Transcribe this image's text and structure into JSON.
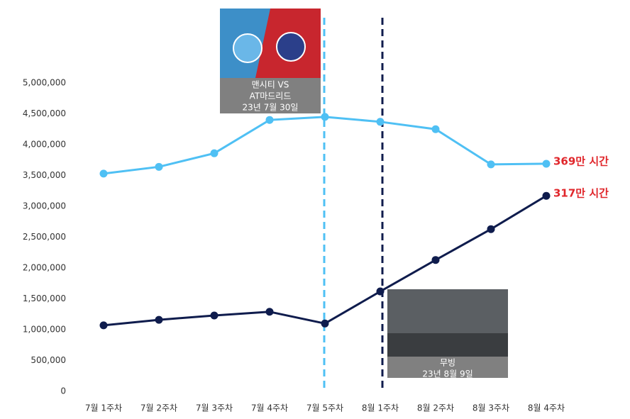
{
  "chart_data": {
    "type": "line",
    "categories": [
      "7월 1주차",
      "7월 2주차",
      "7월 3주차",
      "7월 4주차",
      "7월 5주차",
      "8월 1주차",
      "8월 2주차",
      "8월 3주차",
      "8월 4주차"
    ],
    "series": [
      {
        "color": "#4fc0f4",
        "values": [
          3530000,
          3640000,
          3860000,
          4400000,
          4450000,
          4370000,
          4250000,
          3680000,
          3690000
        ],
        "value_labels": [
          null,
          null,
          null,
          null,
          null,
          null,
          null,
          null,
          "369만 시간"
        ]
      },
      {
        "color": "#0f1c4d",
        "values": [
          1070000,
          1160000,
          1230000,
          1290000,
          1100000,
          1620000,
          2130000,
          2630000,
          3170000
        ],
        "value_labels": [
          null,
          null,
          null,
          null,
          null,
          null,
          null,
          null,
          "317만 시간"
        ]
      }
    ],
    "ylim": [
      0,
      5000000
    ],
    "yticks": [
      {
        "value": 0,
        "label": "0"
      },
      {
        "value": 500000,
        "label": "500,000"
      },
      {
        "value": 1000000,
        "label": "1,000,000"
      },
      {
        "value": 1500000,
        "label": "1,500,000"
      },
      {
        "value": 2000000,
        "label": "2,000,000"
      },
      {
        "value": 2500000,
        "label": "2,500,000"
      },
      {
        "value": 3000000,
        "label": "3,000,000"
      },
      {
        "value": 3500000,
        "label": "3,500,000"
      },
      {
        "value": 4000000,
        "label": "4,000,000"
      },
      {
        "value": 4500000,
        "label": "4,500,000"
      },
      {
        "value": 5000000,
        "label": "5,000,000"
      }
    ],
    "grid": false,
    "annotations": [
      {
        "lines": [
          "맨시티 VS",
          "AT마드리드",
          "23년 7월 30일"
        ]
      },
      {
        "lines": [
          "무빙",
          "23년 8월 9일"
        ]
      }
    ]
  }
}
